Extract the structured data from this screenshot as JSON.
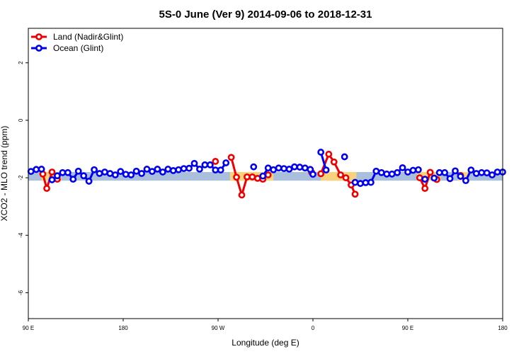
{
  "chart_data": {
    "type": "line",
    "title": "5S-0 June (Ver 9)   2014-09-06 to 2018-12-31",
    "xlabel": "Longitude (deg E)",
    "ylabel": "XCO2 - MLO trend (ppm)",
    "xlim": [
      90,
      450
    ],
    "ylim": [
      -6.9,
      3.2
    ],
    "xticks": [
      {
        "value": 90,
        "label": "90 E"
      },
      {
        "value": 162,
        "label": "180"
      },
      {
        "value": 234,
        "label": "90 W"
      },
      {
        "value": 306,
        "label": "0"
      },
      {
        "value": 378,
        "label": "90 E"
      },
      {
        "value": 450,
        "label": "180"
      }
    ],
    "yticks": [
      2,
      0,
      -2,
      -4,
      -6
    ],
    "reference_band": {
      "low": -2.1,
      "high": -1.8,
      "color": "#a9bfdc"
    },
    "land_bands": [
      {
        "x0": 100,
        "x1": 115
      },
      {
        "x0": 243,
        "x1": 276
      },
      {
        "x0": 312,
        "x1": 339
      },
      {
        "x0": 385,
        "x1": 403
      },
      {
        "x0": 416,
        "x1": 424
      }
    ],
    "land_band_color": "#fbd27c",
    "legend": {
      "position": "top-left",
      "entries": [
        {
          "label": "Land (Nadir&Glint)",
          "color": "#ee0000"
        },
        {
          "label": "Ocean (Glint)",
          "color": "#0000ee"
        }
      ]
    },
    "series": [
      {
        "name": "Land (Nadir&Glint)",
        "color": "#ee0000",
        "segments": [
          [
            [
              101,
              -1.87
            ],
            [
              104,
              -2.37
            ],
            [
              108,
              -1.8
            ]
          ],
          [
            [
              112,
              -2.05
            ]
          ],
          [
            [
              232,
              -1.43
            ]
          ],
          [
            [
              244,
              -1.29
            ],
            [
              248,
              -1.98
            ],
            [
              252,
              -2.6
            ],
            [
              256,
              -1.97
            ],
            [
              260,
              -1.97
            ],
            [
              264,
              -2.02
            ],
            [
              268,
              -2.05
            ],
            [
              272,
              -1.9
            ]
          ],
          [
            [
              305,
              -1.81
            ]
          ],
          [
            [
              312,
              -1.86
            ],
            [
              318,
              -1.18
            ],
            [
              322,
              -1.45
            ],
            [
              327,
              -1.9
            ],
            [
              331,
              -2.0
            ],
            [
              335,
              -2.25
            ],
            [
              338,
              -2.57
            ]
          ],
          [
            [
              387,
              -2.0
            ],
            [
              391,
              -2.37
            ],
            [
              395,
              -1.81
            ]
          ],
          [
            [
              400,
              -2.06
            ]
          ],
          [
            [
              418,
              -1.92
            ]
          ]
        ]
      },
      {
        "name": "Ocean (Glint)",
        "color": "#0000ee",
        "segments": [
          [
            [
              92,
              -1.78
            ],
            [
              96,
              -1.71
            ],
            [
              100,
              -1.7
            ]
          ],
          [
            [
              108,
              -2.07
            ],
            [
              112,
              -1.93
            ],
            [
              116,
              -1.82
            ],
            [
              120,
              -1.82
            ],
            [
              124,
              -2.05
            ],
            [
              128,
              -1.77
            ],
            [
              132,
              -1.93
            ],
            [
              136,
              -2.12
            ],
            [
              140,
              -1.72
            ],
            [
              144,
              -1.85
            ],
            [
              148,
              -1.8
            ],
            [
              152,
              -1.85
            ],
            [
              156,
              -1.9
            ],
            [
              160,
              -1.78
            ],
            [
              164,
              -1.88
            ],
            [
              168,
              -1.9
            ],
            [
              172,
              -1.77
            ],
            [
              176,
              -1.85
            ],
            [
              180,
              -1.7
            ],
            [
              184,
              -1.78
            ],
            [
              188,
              -1.7
            ],
            [
              192,
              -1.8
            ],
            [
              196,
              -1.7
            ],
            [
              200,
              -1.75
            ],
            [
              204,
              -1.72
            ],
            [
              208,
              -1.68
            ],
            [
              212,
              -1.67
            ],
            [
              216,
              -1.5
            ],
            [
              220,
              -1.7
            ],
            [
              224,
              -1.55
            ],
            [
              228,
              -1.55
            ],
            [
              232,
              -1.73
            ],
            [
              236,
              -1.73
            ],
            [
              240,
              -1.48
            ]
          ],
          [
            [
              261,
              -1.62
            ]
          ],
          [
            [
              268,
              -1.94
            ],
            [
              272,
              -1.66
            ],
            [
              276,
              -1.72
            ],
            [
              280,
              -1.66
            ],
            [
              284,
              -1.68
            ],
            [
              288,
              -1.7
            ],
            [
              292,
              -1.62
            ],
            [
              296,
              -1.63
            ],
            [
              300,
              -1.66
            ],
            [
              304,
              -1.71
            ],
            [
              306,
              -1.88
            ]
          ],
          [
            [
              312,
              -1.11
            ],
            [
              316,
              -1.73
            ]
          ],
          [
            [
              330,
              -1.27
            ]
          ],
          [
            [
              338,
              -2.16
            ],
            [
              342,
              -2.2
            ],
            [
              346,
              -2.17
            ],
            [
              350,
              -2.16
            ],
            [
              354,
              -1.77
            ],
            [
              358,
              -1.82
            ],
            [
              362,
              -1.87
            ],
            [
              366,
              -1.87
            ],
            [
              370,
              -1.82
            ],
            [
              374,
              -1.65
            ],
            [
              378,
              -1.8
            ],
            [
              382,
              -1.74
            ],
            [
              386,
              -1.72
            ]
          ],
          [
            [
              391,
              -2.05
            ]
          ],
          [
            [
              398,
              -2.01
            ]
          ],
          [
            [
              402,
              -1.82
            ],
            [
              406,
              -1.82
            ],
            [
              410,
              -2.03
            ],
            [
              414,
              -1.76
            ],
            [
              418,
              -1.95
            ],
            [
              422,
              -2.1
            ],
            [
              426,
              -1.73
            ],
            [
              430,
              -1.85
            ],
            [
              434,
              -1.82
            ],
            [
              438,
              -1.83
            ],
            [
              442,
              -1.9
            ],
            [
              446,
              -1.8
            ],
            [
              450,
              -1.8
            ]
          ]
        ]
      }
    ]
  }
}
